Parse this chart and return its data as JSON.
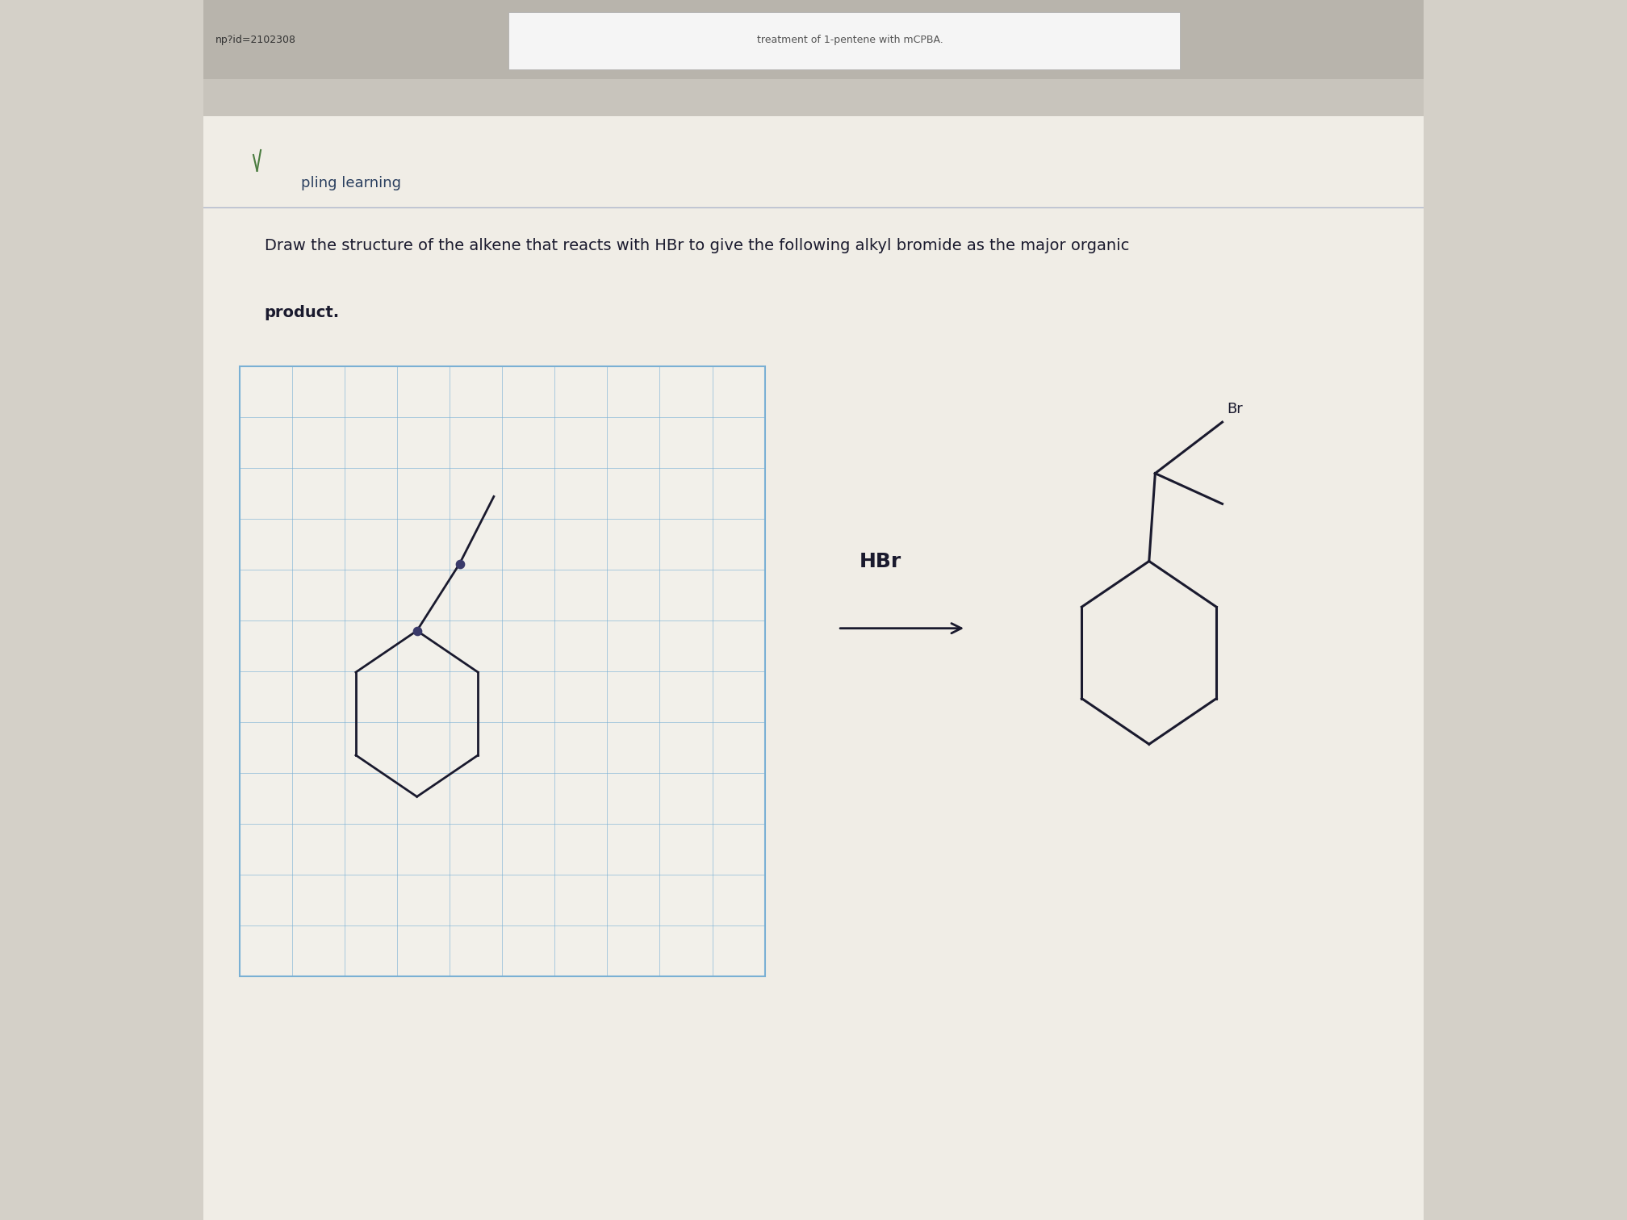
{
  "bg_color": "#d4d0c8",
  "page_bg": "#e8e4dc",
  "white_bg": "#f0ede6",
  "title_text": "Draw the structure of the alkene that reacts with HBr to give the following alkyl bromide as the major organic",
  "title_text2": "product.",
  "grid_color": "#7ab0d4",
  "hbr_label": "HBr",
  "br_label": "Br",
  "molecule_color": "#1a1a2e",
  "text_color": "#1a1a2e",
  "navbar_text": "np?id=2102308",
  "search_text": "treatment of 1-pentene with mCPBA.",
  "logo_text": "pling learning"
}
